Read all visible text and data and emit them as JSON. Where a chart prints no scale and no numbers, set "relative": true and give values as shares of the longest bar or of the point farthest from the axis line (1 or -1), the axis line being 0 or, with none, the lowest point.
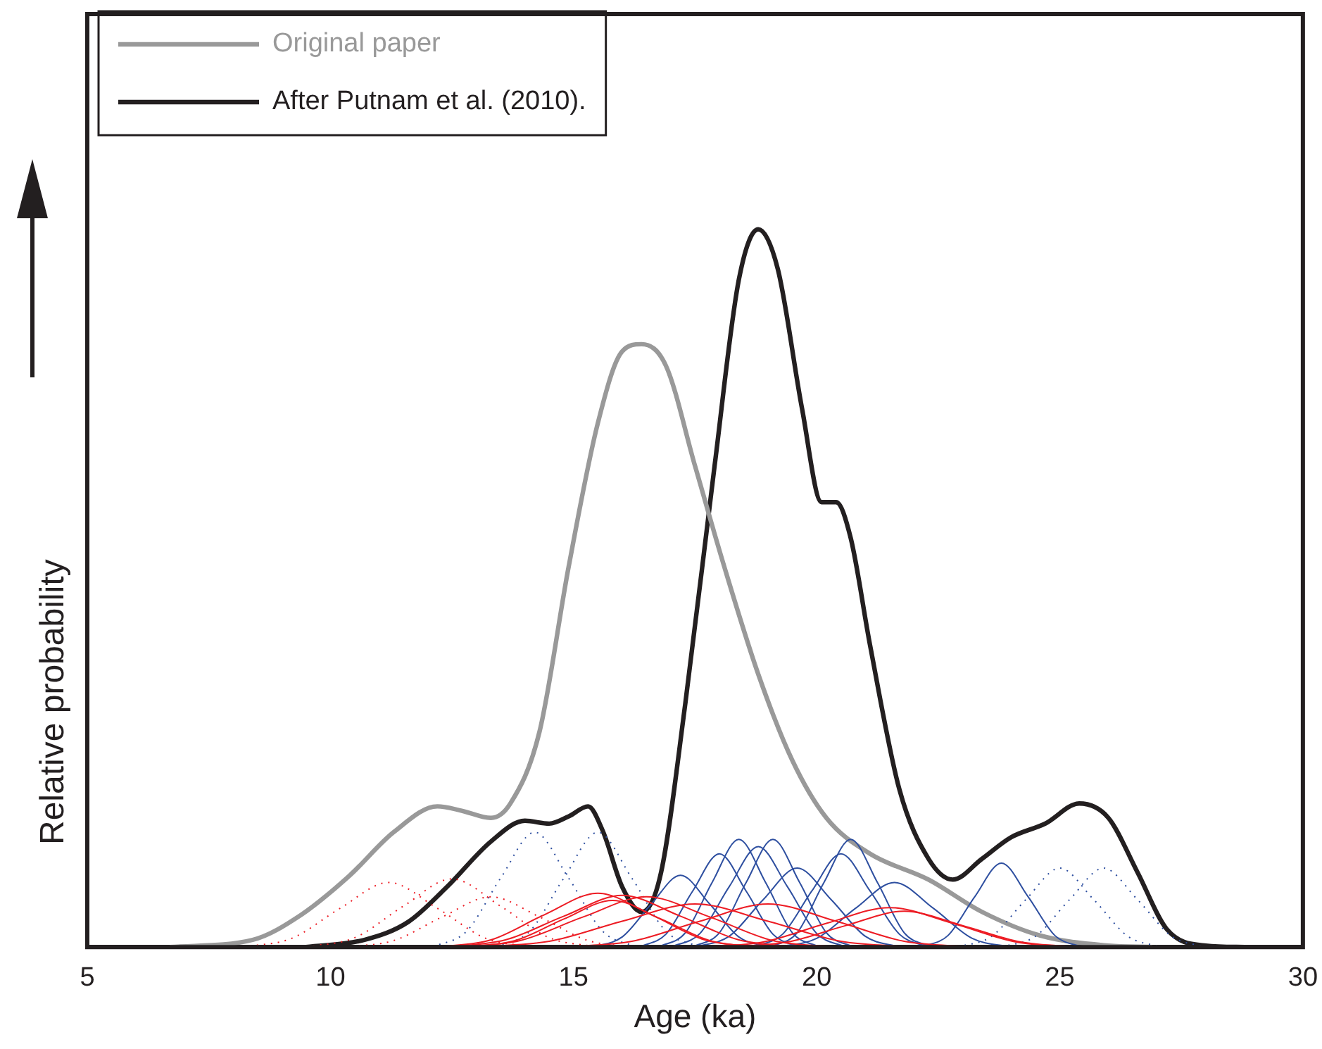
{
  "chart_data": {
    "type": "line",
    "relative": true,
    "xlabel": "Age (ka)",
    "ylabel": "Relative probability",
    "xlim": [
      5,
      30
    ],
    "xticks": [
      5,
      10,
      15,
      20,
      25,
      30
    ],
    "legend": "top left",
    "grid": false,
    "marker": "none",
    "series": [
      {
        "color": "#ed1c24",
        "x": [
          12.2,
          13.3,
          14.4,
          15.5,
          16.6,
          17.7,
          18.8
        ],
        "values": [
          0,
          0.01,
          0.045,
          0.075,
          0.045,
          0.01,
          0
        ]
      },
      {
        "color": "#ed1c24",
        "x": [
          12.4,
          13.6,
          14.8,
          16,
          17.2,
          18.4,
          19.6
        ],
        "values": [
          0,
          0.01,
          0.043,
          0.072,
          0.043,
          0.01,
          0
        ]
      },
      {
        "color": "#ed1c24",
        "x": [
          12.6,
          13.9,
          15.2,
          16.5,
          17.8,
          19.1,
          20.4
        ],
        "values": [
          0,
          0.009,
          0.042,
          0.07,
          0.042,
          0.009,
          0
        ]
      },
      {
        "color": "#ed1c24",
        "x": [
          12.8,
          13.8,
          14.8,
          15.8,
          16.8,
          17.8,
          18.8
        ],
        "values": [
          0,
          0.009,
          0.039,
          0.065,
          0.039,
          0.009,
          0
        ]
      },
      {
        "color": "#ed1c24",
        "x": [
          13,
          14.5,
          16,
          17.5,
          19,
          20.5,
          22
        ],
        "values": [
          0,
          0.008,
          0.036,
          0.06,
          0.036,
          0.008,
          0
        ]
      },
      {
        "color": "#ed1c24",
        "x": [
          14.8,
          16.2,
          17.6,
          19,
          20.4,
          21.8,
          23.2
        ],
        "values": [
          0,
          0.008,
          0.036,
          0.06,
          0.036,
          0.008,
          0
        ]
      },
      {
        "color": "#ed1c24",
        "x": [
          17.6,
          18.9,
          20.2,
          21.5,
          22.8,
          24.1,
          25.4
        ],
        "values": [
          0,
          0.007,
          0.033,
          0.055,
          0.033,
          0.007,
          0
        ]
      },
      {
        "color": "#ed1c24",
        "x": [
          18.2,
          19.4,
          20.6,
          21.8,
          23,
          24.2,
          25.4
        ],
        "values": [
          0,
          0.007,
          0.03,
          0.05,
          0.03,
          0.007,
          0
        ]
      },
      {
        "color": "#2e4fa0",
        "x": [
          15.4,
          16,
          16.6,
          17.2,
          17.8,
          18.4,
          19
        ],
        "values": [
          0,
          0.014,
          0.06,
          0.1,
          0.06,
          0.014,
          0
        ]
      },
      {
        "color": "#2e4fa0",
        "x": [
          16.35,
          16.9,
          17.45,
          18,
          18.55,
          19.1,
          19.65
        ],
        "values": [
          0,
          0.018,
          0.078,
          0.13,
          0.078,
          0.018,
          0
        ]
      },
      {
        "color": "#2e4fa0",
        "x": [
          16.75,
          17.3,
          17.85,
          18.4,
          18.95,
          19.5,
          20.05
        ],
        "values": [
          0,
          0.02,
          0.09,
          0.15,
          0.09,
          0.02,
          0
        ]
      },
      {
        "color": "#2e4fa0",
        "x": [
          17,
          17.6,
          18.2,
          18.8,
          19.4,
          20,
          20.6
        ],
        "values": [
          0,
          0.019,
          0.084,
          0.14,
          0.084,
          0.019,
          0
        ]
      },
      {
        "color": "#2e4fa0",
        "x": [
          17.45,
          18,
          18.55,
          19.1,
          19.65,
          20.2,
          20.75
        ],
        "values": [
          0,
          0.02,
          0.09,
          0.15,
          0.09,
          0.02,
          0
        ]
      },
      {
        "color": "#2e4fa0",
        "x": [
          17.5,
          18.2,
          18.9,
          19.6,
          20.3,
          21,
          21.7
        ],
        "values": [
          0,
          0.015,
          0.066,
          0.11,
          0.066,
          0.015,
          0
        ]
      },
      {
        "color": "#2e4fa0",
        "x": [
          18.7,
          19.3,
          19.9,
          20.5,
          21.1,
          21.7,
          22.3
        ],
        "values": [
          0,
          0.018,
          0.078,
          0.13,
          0.078,
          0.018,
          0
        ]
      },
      {
        "color": "#2e4fa0",
        "x": [
          19.05,
          19.6,
          20.15,
          20.7,
          21.25,
          21.8,
          22.35
        ],
        "values": [
          0,
          0.02,
          0.09,
          0.15,
          0.09,
          0.02,
          0
        ]
      },
      {
        "color": "#2e4fa0",
        "x": [
          19.2,
          20,
          20.8,
          21.6,
          22.4,
          23.2,
          24
        ],
        "values": [
          0,
          0.012,
          0.054,
          0.09,
          0.054,
          0.012,
          0
        ]
      },
      {
        "color": "#2e4fa0",
        "x": [
          22.15,
          22.7,
          23.25,
          23.8,
          24.35,
          24.9,
          25.45
        ],
        "values": [
          0,
          0.016,
          0.07,
          0.117,
          0.07,
          0.016,
          0
        ]
      },
      {
        "color": "#ed1c24",
        "line_style": "dotted",
        "x": [
          8.2,
          9.2,
          10.2,
          11.2,
          12.2,
          13.2,
          14.2
        ],
        "values": [
          0,
          0.012,
          0.054,
          0.09,
          0.054,
          0.012,
          0
        ]
      },
      {
        "color": "#ed1c24",
        "line_style": "dotted",
        "x": [
          9.5,
          10.5,
          11.5,
          12.5,
          13.5,
          14.5,
          15.5
        ],
        "values": [
          0,
          0.013,
          0.057,
          0.095,
          0.057,
          0.013,
          0
        ]
      },
      {
        "color": "#ed1c24",
        "line_style": "dotted",
        "x": [
          10.3,
          11.3,
          12.3,
          13.3,
          14.3,
          15.3,
          16.3
        ],
        "values": [
          0,
          0.009,
          0.042,
          0.07,
          0.042,
          0.009,
          0
        ]
      },
      {
        "color": "#2e4fa0",
        "line_style": "dotted",
        "x": [
          12.1,
          12.8,
          13.5,
          14.2,
          14.9,
          15.6,
          16.3
        ],
        "values": [
          0,
          0.022,
          0.096,
          0.16,
          0.096,
          0.022,
          0
        ]
      },
      {
        "color": "#2e4fa0",
        "line_style": "dotted",
        "x": [
          13.4,
          14.1,
          14.8,
          15.5,
          16.2,
          16.9,
          17.6
        ],
        "values": [
          0,
          0.022,
          0.096,
          0.16,
          0.096,
          0.022,
          0
        ]
      },
      {
        "color": "#2e4fa0",
        "line_style": "dotted",
        "x": [
          22.9,
          23.6,
          24.3,
          25,
          25.7,
          26.4,
          27.1
        ],
        "values": [
          0,
          0.015,
          0.066,
          0.11,
          0.066,
          0.015,
          0
        ]
      },
      {
        "color": "#2e4fa0",
        "line_style": "dotted",
        "x": [
          23.8,
          24.5,
          25.2,
          25.9,
          26.6,
          27.3,
          28
        ],
        "values": [
          0,
          0.015,
          0.066,
          0.11,
          0.066,
          0.015,
          0
        ]
      },
      {
        "name": "Original paper",
        "color": "#999999",
        "x": [
          6.7,
          8.4,
          9.4,
          10.4,
          11.3,
          12.2,
          12.7,
          13.3,
          13.7,
          14.3,
          14.9,
          15.5,
          16,
          16.4,
          16.9,
          17.5,
          18.1,
          18.8,
          19.5,
          20.2,
          21.1,
          22.3,
          23.4,
          24.6,
          26,
          26.9
        ],
        "values": [
          0,
          0.01,
          0.045,
          0.1,
          0.16,
          0.196,
          0.19,
          0.18,
          0.2,
          0.3,
          0.53,
          0.73,
          0.83,
          0.84,
          0.81,
          0.67,
          0.53,
          0.38,
          0.26,
          0.18,
          0.13,
          0.094,
          0.049,
          0.016,
          0.002,
          0
        ]
      },
      {
        "name": "After Putnam et al. (2010).",
        "color": "#231f20",
        "x": [
          9.5,
          10.7,
          11.6,
          12.4,
          13.3,
          14,
          14.5,
          14.9,
          15.3,
          15.6,
          16,
          16.4,
          16.8,
          17.3,
          17.9,
          18.4,
          18.8,
          19.2,
          19.7,
          20.1,
          20.4,
          20.7,
          21.1,
          21.7,
          22.3,
          22.8,
          23.4,
          24,
          24.7,
          25.4,
          26,
          26.6,
          27.2,
          28,
          28.8
        ],
        "values": [
          0,
          0.01,
          0.035,
          0.084,
          0.147,
          0.176,
          0.172,
          0.182,
          0.196,
          0.162,
          0.084,
          0.049,
          0.104,
          0.34,
          0.67,
          0.93,
          1,
          0.945,
          0.75,
          0.62,
          0.62,
          0.57,
          0.42,
          0.22,
          0.123,
          0.094,
          0.123,
          0.153,
          0.172,
          0.2,
          0.18,
          0.104,
          0.025,
          0.002,
          0
        ]
      }
    ]
  }
}
